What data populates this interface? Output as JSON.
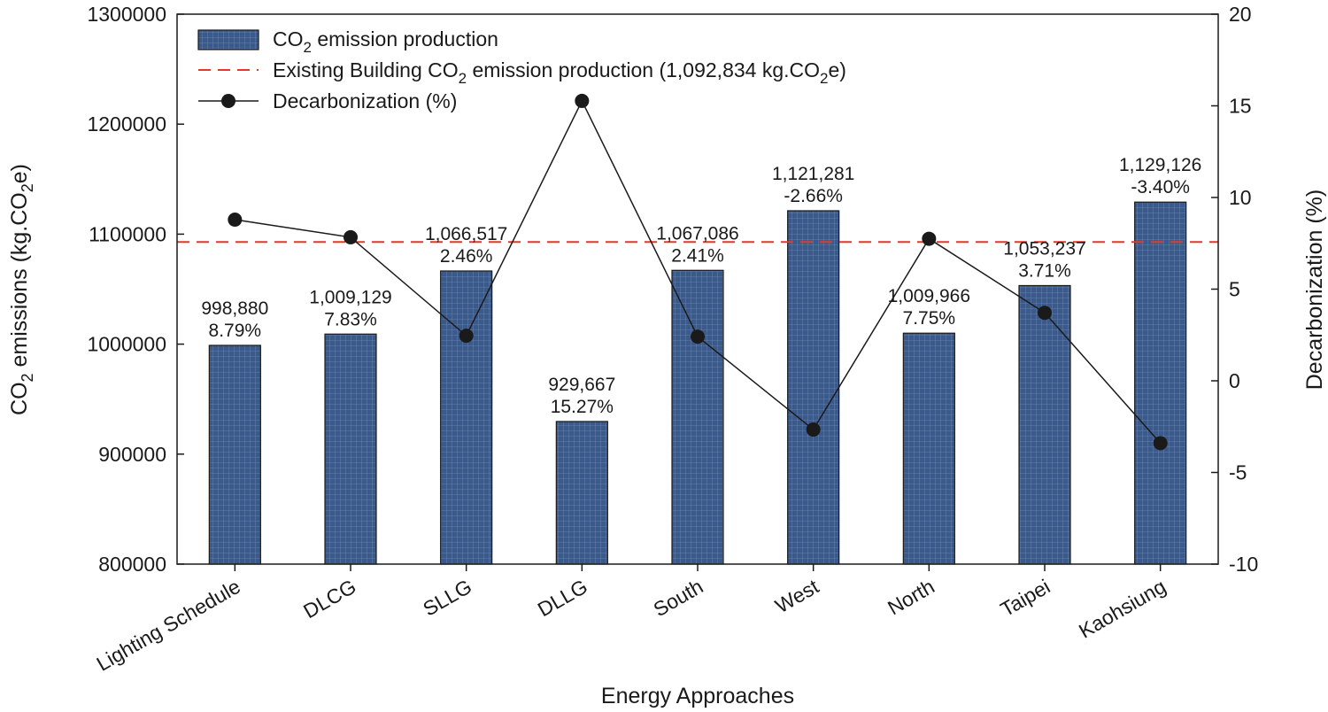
{
  "chart_data": {
    "type": "bar",
    "xlabel": "Energy Approaches",
    "ylabel": {
      "main": "CO",
      "sub": "2",
      "rest": " emissions (kg.CO",
      "sub2": "2",
      "end": "e)"
    },
    "y2label": "Decarbonization (%)",
    "categories": [
      "Lighting Schedule",
      "DLCG",
      "SLLG",
      "DLLG",
      "South",
      "West",
      "North",
      "Taipei",
      "Kaohsiung"
    ],
    "ylim": [
      800000,
      1300000
    ],
    "y2lim": [
      -10,
      20
    ],
    "y_ticks": [
      "800000",
      "900000",
      "1000000",
      "1100000",
      "1200000",
      "1300000"
    ],
    "y2_ticks": [
      "-10",
      "-5",
      "0",
      "5",
      "10",
      "15",
      "20"
    ],
    "series": [
      {
        "name": "CO2 emission production",
        "type": "bar",
        "axis": "left",
        "values": [
          998880,
          1009129,
          1066517,
          929667,
          1067086,
          1121281,
          1009966,
          1053237,
          1129126
        ],
        "labels": [
          "998,880",
          "1,009,129",
          "1,066,517",
          "929,667",
          "1,067,086",
          "1,121,281",
          "1,009,966",
          "1,053,237",
          "1,129,126"
        ]
      },
      {
        "name": "Decarbonization (%)",
        "type": "line",
        "axis": "right",
        "values": [
          8.79,
          7.83,
          2.46,
          15.27,
          2.41,
          -2.66,
          7.75,
          3.71,
          -3.4
        ],
        "labels": [
          "8.79%",
          "7.83%",
          "2.46%",
          "15.27%",
          "2.41%",
          "-2.66%",
          "7.75%",
          "3.71%",
          "-3.40%"
        ]
      }
    ],
    "reference_line": {
      "name": "Existing Building CO2 emission production (1,092,834 kg.CO2e)",
      "value": 1092834,
      "style": "dashed"
    },
    "legend": {
      "placement": "top-left",
      "entries": [
        {
          "parts": [
            "CO",
            "2",
            " emission production"
          ]
        },
        {
          "parts": [
            "Existing Building CO",
            "2",
            " emission production (1,092,834 kg.CO",
            "2",
            "e)"
          ]
        },
        {
          "parts": [
            "Decarbonization (%)"
          ]
        }
      ]
    },
    "grid": false,
    "colors": {
      "bar": "#3b5a8c",
      "bar_edge": "#1a1a1a",
      "reference": "#e8372a",
      "line": "#1a1a1a"
    }
  }
}
